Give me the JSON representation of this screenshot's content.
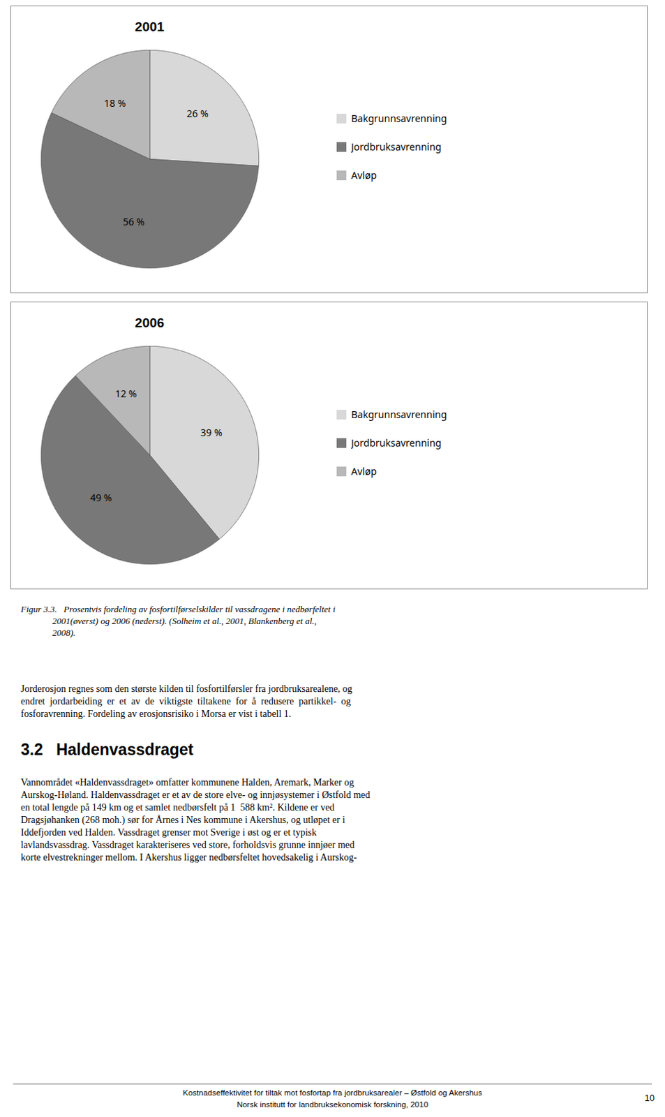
{
  "chart_data": [
    {
      "type": "pie",
      "title": "2001",
      "categories": [
        "Bakgrunnsavrenning",
        "Jordbruksavrenning",
        "Avløp"
      ],
      "values": [
        26,
        56,
        18
      ],
      "value_labels": [
        "26 %",
        "56 %",
        "18 %"
      ],
      "colors": [
        "#d8d8d8",
        "#787878",
        "#b8b8b8"
      ],
      "data_labels": true,
      "legend": "right"
    },
    {
      "type": "pie",
      "title": "2006",
      "categories": [
        "Bakgrunnsavrenning",
        "Jordbruksavrenning",
        "Avløp"
      ],
      "values": [
        39,
        49,
        12
      ],
      "value_labels": [
        "39 %",
        "49 %",
        "12 %"
      ],
      "colors": [
        "#d8d8d8",
        "#787878",
        "#b8b8b8"
      ],
      "data_labels": true,
      "legend": "right"
    }
  ],
  "caption": "Figur 3.3.   Prosentvis fordeling av fosfortilførselskilder til vassdragene i nedbørfeltet i\n              2001(øverst) og 2006 (nederst). (Solheim et al., 2001, Blankenberg et al.,\n              2008).",
  "paragraphs": [
    [
      "Jorderosjon regnes som den største kilden til fosfortilførsler fra jordbruksarealene, og",
      "endret  jordarbeiding  er  et  av  de  viktigste  tiltakene  for  å  redusere  partikkel-  og",
      "fosforavrenning. Fordeling av erosjonsrisiko i Morsa er vist i tabell 1."
    ],
    [
      "Vannområdet «Haldenvassdraget» omfatter kommunene Halden, Aremark, Marker og",
      "Aurskog-Høland. Haldenvassdraget er et av de store elve- og innjøsystemer i Østfold med",
      "en total lengde på 149 km og et samlet nedbørsfelt på 1  588 km². Kildene er ved",
      "Dragsjøhanken (268 moh.) sør for Årnes i Nes kommune i Akershus, og utløpet er i",
      "Iddefjorden ved Halden. Vassdraget grenser mot Sverige i øst og er et typisk",
      "lavlandsvassdrag. Vassdraget karakteriseres ved store, forholdsvis grunne innjøer med",
      "korte elvestrekninger mellom. I Akershus ligger nedbørsfeltet hovedsakelig i Aurskog-"
    ]
  ],
  "section_heading": "3.2   Haldenvassdraget",
  "footer": [
    "Kostnadseffektivitet for tiltak mot fosfortap fra jordbruksarealer – Østfold og Akershus",
    "Norsk institutt for landbruksekonomisk forskning, 2010"
  ],
  "page_number": "10"
}
